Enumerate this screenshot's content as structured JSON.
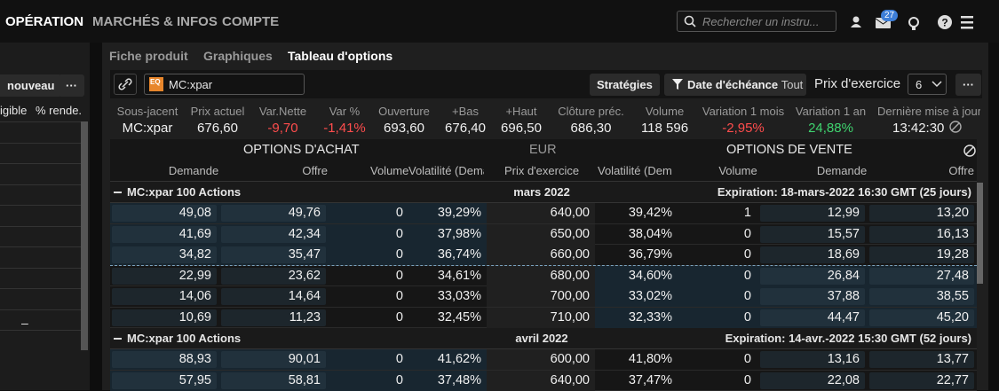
{
  "nav": {
    "items": [
      "OPÉRATION",
      "MARCHÉS & INFOS",
      "COMPTE"
    ],
    "search_placeholder": "Rechercher un instru...",
    "badge": "27"
  },
  "left_panel": {
    "button": "nouveau",
    "more": "···",
    "columns": [
      "igible",
      "% rende.."
    ],
    "dash": "–"
  },
  "tabs": [
    "Fiche produit",
    "Graphiques",
    "Tableau d'options"
  ],
  "toolbar": {
    "icon": "EQ",
    "symbol": "MC:xpar",
    "strategies": "Stratégies",
    "expiry": "Date d'échéance",
    "expiry_value": "Tout",
    "strike_label": "Prix d'exercice",
    "strike_count": "6",
    "more": "···"
  },
  "quote": {
    "fields": [
      {
        "label": "Sous-jacent",
        "value": "MC:xpar"
      },
      {
        "label": "Prix actuel",
        "value": "676,60"
      },
      {
        "label": "Var.Nette",
        "value": "-9,70",
        "color": "#ff4d4d"
      },
      {
        "label": "Var %",
        "value": "-1,41%",
        "color": "#ff4d4d"
      },
      {
        "label": "Ouverture",
        "value": "693,60"
      },
      {
        "label": "+Bas",
        "value": "676,40"
      },
      {
        "label": "+Haut",
        "value": "696,50"
      },
      {
        "label": "Clôture préc.",
        "value": "686,30"
      },
      {
        "label": "Volume",
        "value": "118 596"
      },
      {
        "label": "Variation 1 mois",
        "value": "-2,95%",
        "color": "#ff4d4d"
      },
      {
        "label": "Variation 1 an",
        "value": "24,88%",
        "color": "#3fd46f"
      },
      {
        "label": "Dernière mise à jour",
        "value": "13:42:30"
      }
    ]
  },
  "table": {
    "call_header": "OPTIONS D'ACHAT",
    "currency": "EUR",
    "put_header": "OPTIONS DE VENTE",
    "columns": [
      "Demande",
      "Offre",
      "Volume",
      "Volatilité (Demande)",
      "Prix d'exercice",
      "Volatilité (Demande)",
      "Volume",
      "Demande",
      "Offre"
    ],
    "groups": [
      {
        "underlying": "MC:xpar 100 Actions",
        "month": "mars 2022",
        "expiration": "Expiration: 18-mars-2022 16:30 GMT (25 jours)",
        "rows": [
          [
            "49,08",
            "49,76",
            "0",
            "39,29%",
            "640,00",
            "39,42%",
            "1",
            "12,99",
            "13,20"
          ],
          [
            "41,69",
            "42,34",
            "0",
            "37,98%",
            "650,00",
            "38,04%",
            "0",
            "15,57",
            "16,13"
          ],
          [
            "34,82",
            "35,47",
            "0",
            "36,74%",
            "660,00",
            "36,79%",
            "0",
            "18,69",
            "19,28"
          ],
          [
            "22,99",
            "23,62",
            "0",
            "34,61%",
            "680,00",
            "34,60%",
            "0",
            "26,84",
            "27,48"
          ],
          [
            "14,06",
            "14,64",
            "0",
            "33,03%",
            "700,00",
            "33,02%",
            "0",
            "37,88",
            "38,55"
          ],
          [
            "10,69",
            "11,23",
            "0",
            "32,45%",
            "710,00",
            "32,33%",
            "0",
            "44,47",
            "45,20"
          ]
        ]
      },
      {
        "underlying": "MC:xpar 100 Actions",
        "month": "avril 2022",
        "expiration": "Expiration: 14-avr.-2022 15:30 GMT (52 jours)",
        "rows": [
          [
            "88,93",
            "90,01",
            "0",
            "41,62%",
            "600,00",
            "41,80%",
            "0",
            "13,16",
            "13,77"
          ],
          [
            "57,95",
            "58,81",
            "0",
            "37,48%",
            "640,00",
            "37,47%",
            "0",
            "22,08",
            "22,77"
          ]
        ]
      }
    ]
  }
}
